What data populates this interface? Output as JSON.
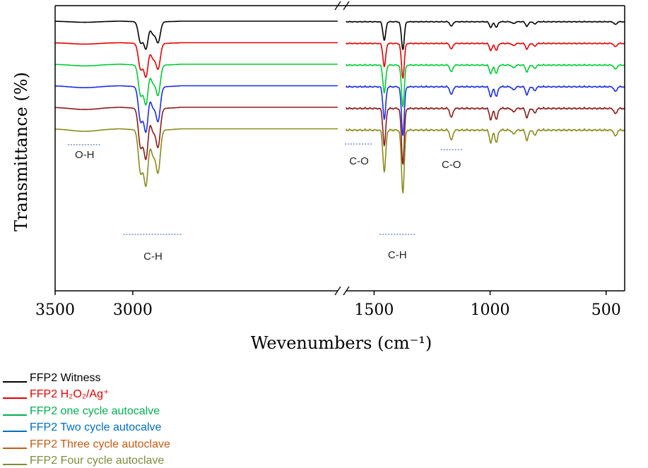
{
  "chart_data": {
    "type": "line",
    "title": "",
    "xlabel": "Wevenumbers (cm⁻¹)",
    "ylabel": "Transmittance (%)",
    "x_ticks": [
      "3500",
      "3000",
      "1500",
      "1000",
      "500"
    ],
    "x_tick_values": [
      3500,
      3000,
      1500,
      1000,
      500
    ],
    "x_range": [
      3500,
      420
    ],
    "axis_break": [
      1680,
      1620
    ],
    "series": [
      {
        "name": "FFP2 Witness",
        "color": "#000000"
      },
      {
        "name": "FFP2 H₂O₂/Ag⁺",
        "color": "#e60000"
      },
      {
        "name": "FFP2 one cycle autocalve",
        "color": "#00cc33"
      },
      {
        "name": "FFP2 Two cycle autocalve",
        "color": "#1a2ee6"
      },
      {
        "name": "FFP2 Three cycle autoclave",
        "color": "#8b1a1a"
      },
      {
        "name": "FFP2 Four cycle autoclave",
        "color": "#8a8a1a"
      }
    ],
    "legend_colors": [
      "#000000",
      "#e60000",
      "#00b050",
      "#0070c0",
      "#c55a11",
      "#7f8c3a"
    ],
    "baseline_offsets": [
      0,
      1,
      2,
      3,
      4,
      5
    ],
    "bands": [
      {
        "x": 2950,
        "depth": 1.0
      },
      {
        "x": 2915,
        "depth": 1.3
      },
      {
        "x": 2870,
        "depth": 0.55
      },
      {
        "x": 2837,
        "depth": 1.0
      },
      {
        "x": 1456,
        "depth": 1.0
      },
      {
        "x": 1376,
        "depth": 1.5
      },
      {
        "x": 1167,
        "depth": 0.25
      },
      {
        "x": 997,
        "depth": 0.3
      },
      {
        "x": 973,
        "depth": 0.3
      },
      {
        "x": 899,
        "depth": 0.1
      },
      {
        "x": 841,
        "depth": 0.25
      },
      {
        "x": 808,
        "depth": 0.12
      },
      {
        "x": 460,
        "depth": 0.15
      }
    ],
    "annotations": [
      {
        "text": "O-H",
        "x": 3310
      },
      {
        "text": "C-H",
        "x": 2870
      },
      {
        "text": "C-O",
        "x": 1565
      },
      {
        "text": "C-H",
        "x": 1400
      },
      {
        "text": "C-O",
        "x": 1167
      }
    ],
    "grid": false,
    "legend_position": "bottom-left"
  }
}
